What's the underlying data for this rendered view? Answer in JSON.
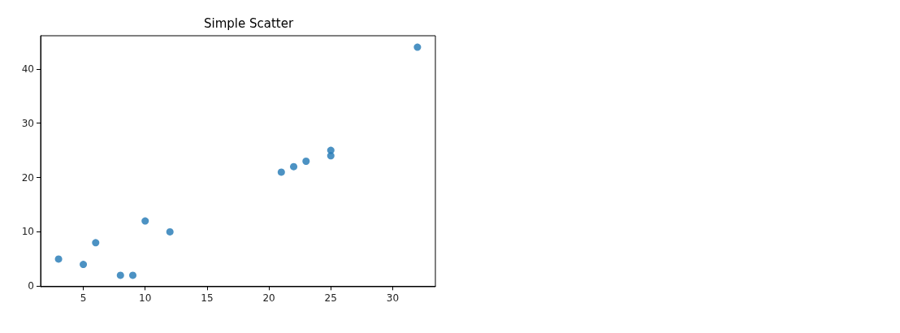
{
  "chart_data": {
    "type": "scatter",
    "title": "Simple Scatter",
    "x": [
      3,
      5,
      6,
      8,
      9,
      10,
      12,
      21,
      22,
      23,
      25,
      25,
      32
    ],
    "values": [
      5,
      4,
      8,
      2,
      2,
      12,
      10,
      21,
      22,
      23,
      25,
      24,
      44
    ],
    "color": "#1f77b4",
    "marker": "circle",
    "grid": false,
    "xlim": [
      1.55,
      33.45
    ],
    "xticks": [
      5,
      10,
      15,
      20,
      25,
      30
    ],
    "ylim": [
      -0.1,
      46.1
    ],
    "yticks": [
      0,
      10,
      20,
      30,
      40
    ]
  }
}
